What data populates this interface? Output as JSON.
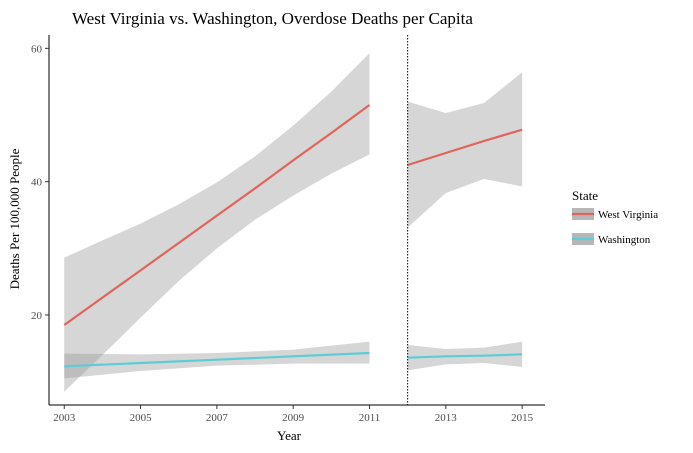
{
  "chart_data": {
    "type": "line",
    "title": "West Virginia vs. Washington, Overdose Deaths per Capita",
    "xlabel": "Year",
    "ylabel": "Deaths Per 100,000 People",
    "xlim": [
      2002.6,
      2015.6
    ],
    "ylim": [
      6.5,
      62
    ],
    "x_ticks": [
      "2003",
      "2005",
      "2007",
      "2009",
      "2011",
      "2013",
      "2015"
    ],
    "y_ticks": [
      "20",
      "40",
      "60"
    ],
    "cutoff_year": 2012,
    "legend": {
      "title": "State",
      "position": "right"
    },
    "grid": false,
    "series": [
      {
        "name": "West Virginia",
        "color": "#E0645A",
        "segments": [
          {
            "x": [
              2003,
              2004,
              2005,
              2006,
              2007,
              2008,
              2009,
              2010,
              2011
            ],
            "y": [
              18.5,
              22.6,
              26.7,
              30.8,
              34.9,
              39.0,
              43.2,
              47.3,
              51.5
            ],
            "upper": [
              28.6,
              31.2,
              33.7,
              36.6,
              39.9,
              43.8,
              48.4,
              53.5,
              59.3
            ],
            "lower": [
              8.5,
              14.0,
              19.6,
              25.1,
              30.0,
              34.3,
              37.9,
              41.2,
              44.1
            ]
          },
          {
            "x": [
              2012,
              2013,
              2014,
              2015
            ],
            "y": [
              42.5,
              44.3,
              46.1,
              47.8
            ],
            "upper": [
              52.0,
              50.3,
              51.8,
              56.4
            ],
            "lower": [
              33.1,
              38.3,
              40.4,
              39.3
            ]
          }
        ]
      },
      {
        "name": "Washington",
        "color": "#5BCDD6",
        "segments": [
          {
            "x": [
              2003,
              2005,
              2007,
              2009,
              2011
            ],
            "y": [
              12.3,
              12.8,
              13.3,
              13.8,
              14.3
            ],
            "upper": [
              14.2,
              14.1,
              14.3,
              14.8,
              16.0
            ],
            "lower": [
              10.5,
              11.6,
              12.4,
              12.7,
              12.7
            ]
          },
          {
            "x": [
              2012,
              2013,
              2014,
              2015
            ],
            "y": [
              13.6,
              13.8,
              13.9,
              14.1
            ],
            "upper": [
              15.5,
              14.9,
              15.1,
              16.0
            ],
            "lower": [
              11.7,
              12.6,
              12.8,
              12.2
            ]
          }
        ]
      }
    ]
  }
}
